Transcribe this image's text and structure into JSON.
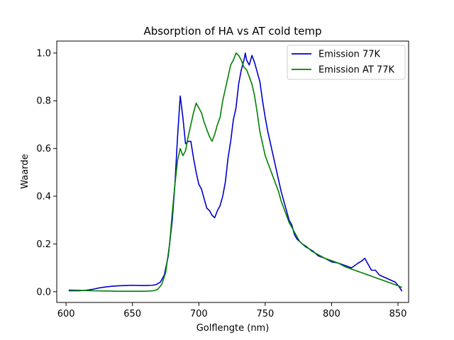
{
  "chart_data": {
    "type": "line",
    "title": "Absorption of HA vs AT cold temp",
    "xlabel": "Golflengte (nm)",
    "ylabel": "Waarde",
    "xlim": [
      593,
      858
    ],
    "ylim": [
      -0.045,
      1.05
    ],
    "xticks": [
      600,
      650,
      700,
      750,
      800,
      850
    ],
    "yticks": [
      0.0,
      0.2,
      0.4,
      0.6,
      0.8,
      1.0
    ],
    "xtick_labels": [
      "600",
      "650",
      "700",
      "750",
      "800",
      "850"
    ],
    "ytick_labels": [
      "0.0",
      "0.2",
      "0.4",
      "0.6",
      "0.8",
      "1.0"
    ],
    "grid": false,
    "legend_position": "top-right",
    "series": [
      {
        "name": "Emission 77K",
        "color": "#0000cc",
        "points": [
          [
            602,
            0.004
          ],
          [
            610,
            0.004
          ],
          [
            615,
            0.006
          ],
          [
            620,
            0.01
          ],
          [
            625,
            0.016
          ],
          [
            630,
            0.02
          ],
          [
            635,
            0.023
          ],
          [
            640,
            0.025
          ],
          [
            645,
            0.026
          ],
          [
            650,
            0.027
          ],
          [
            655,
            0.026
          ],
          [
            660,
            0.026
          ],
          [
            665,
            0.027
          ],
          [
            668,
            0.03
          ],
          [
            671,
            0.04
          ],
          [
            674,
            0.07
          ],
          [
            677,
            0.15
          ],
          [
            680,
            0.3
          ],
          [
            682,
            0.45
          ],
          [
            684,
            0.65
          ],
          [
            686,
            0.82
          ],
          [
            688,
            0.73
          ],
          [
            690,
            0.62
          ],
          [
            692,
            0.63
          ],
          [
            694,
            0.63
          ],
          [
            696,
            0.56
          ],
          [
            698,
            0.5
          ],
          [
            700,
            0.45
          ],
          [
            702,
            0.43
          ],
          [
            704,
            0.39
          ],
          [
            706,
            0.35
          ],
          [
            708,
            0.34
          ],
          [
            710,
            0.32
          ],
          [
            712,
            0.31
          ],
          [
            714,
            0.34
          ],
          [
            716,
            0.36
          ],
          [
            718,
            0.4
          ],
          [
            720,
            0.46
          ],
          [
            722,
            0.56
          ],
          [
            724,
            0.63
          ],
          [
            726,
            0.72
          ],
          [
            728,
            0.77
          ],
          [
            730,
            0.87
          ],
          [
            732,
            0.93
          ],
          [
            734,
            0.97
          ],
          [
            735,
            1.0
          ],
          [
            736,
            0.97
          ],
          [
            738,
            0.95
          ],
          [
            740,
            0.99
          ],
          [
            742,
            0.96
          ],
          [
            744,
            0.92
          ],
          [
            746,
            0.88
          ],
          [
            748,
            0.8
          ],
          [
            750,
            0.73
          ],
          [
            752,
            0.67
          ],
          [
            754,
            0.62
          ],
          [
            756,
            0.57
          ],
          [
            758,
            0.52
          ],
          [
            760,
            0.47
          ],
          [
            762,
            0.42
          ],
          [
            764,
            0.38
          ],
          [
            766,
            0.34
          ],
          [
            768,
            0.3
          ],
          [
            770,
            0.28
          ],
          [
            772,
            0.24
          ],
          [
            774,
            0.22
          ],
          [
            776,
            0.21
          ],
          [
            778,
            0.2
          ],
          [
            780,
            0.19
          ],
          [
            783,
            0.18
          ],
          [
            786,
            0.17
          ],
          [
            790,
            0.15
          ],
          [
            795,
            0.14
          ],
          [
            800,
            0.125
          ],
          [
            805,
            0.12
          ],
          [
            810,
            0.11
          ],
          [
            815,
            0.1
          ],
          [
            820,
            0.12
          ],
          [
            823,
            0.13
          ],
          [
            825,
            0.14
          ],
          [
            827,
            0.12
          ],
          [
            830,
            0.09
          ],
          [
            833,
            0.09
          ],
          [
            836,
            0.07
          ],
          [
            840,
            0.06
          ],
          [
            844,
            0.05
          ],
          [
            848,
            0.04
          ],
          [
            851,
            0.02
          ],
          [
            853,
            0.002
          ]
        ]
      },
      {
        "name": "Emission AT 77K",
        "color": "#008000",
        "points": [
          [
            602,
            0.007
          ],
          [
            610,
            0.006
          ],
          [
            615,
            0.005
          ],
          [
            620,
            0.004
          ],
          [
            630,
            0.003
          ],
          [
            640,
            0.002
          ],
          [
            650,
            0.002
          ],
          [
            660,
            0.002
          ],
          [
            666,
            0.004
          ],
          [
            669,
            0.01
          ],
          [
            672,
            0.03
          ],
          [
            675,
            0.08
          ],
          [
            678,
            0.2
          ],
          [
            680,
            0.33
          ],
          [
            682,
            0.45
          ],
          [
            684,
            0.55
          ],
          [
            686,
            0.6
          ],
          [
            688,
            0.57
          ],
          [
            690,
            0.59
          ],
          [
            692,
            0.65
          ],
          [
            694,
            0.7
          ],
          [
            696,
            0.75
          ],
          [
            698,
            0.79
          ],
          [
            700,
            0.77
          ],
          [
            702,
            0.75
          ],
          [
            704,
            0.71
          ],
          [
            706,
            0.68
          ],
          [
            708,
            0.65
          ],
          [
            710,
            0.63
          ],
          [
            712,
            0.66
          ],
          [
            714,
            0.7
          ],
          [
            716,
            0.73
          ],
          [
            718,
            0.8
          ],
          [
            720,
            0.85
          ],
          [
            722,
            0.9
          ],
          [
            724,
            0.95
          ],
          [
            726,
            0.97
          ],
          [
            728,
            1.0
          ],
          [
            730,
            0.99
          ],
          [
            732,
            0.97
          ],
          [
            734,
            0.94
          ],
          [
            736,
            0.93
          ],
          [
            738,
            0.9
          ],
          [
            740,
            0.87
          ],
          [
            742,
            0.82
          ],
          [
            744,
            0.75
          ],
          [
            746,
            0.67
          ],
          [
            748,
            0.62
          ],
          [
            750,
            0.57
          ],
          [
            752,
            0.54
          ],
          [
            754,
            0.51
          ],
          [
            756,
            0.48
          ],
          [
            758,
            0.45
          ],
          [
            760,
            0.42
          ],
          [
            762,
            0.38
          ],
          [
            764,
            0.35
          ],
          [
            766,
            0.32
          ],
          [
            768,
            0.29
          ],
          [
            770,
            0.27
          ],
          [
            772,
            0.25
          ],
          [
            774,
            0.23
          ],
          [
            776,
            0.21
          ],
          [
            778,
            0.2
          ],
          [
            781,
            0.19
          ],
          [
            785,
            0.17
          ],
          [
            790,
            0.155
          ],
          [
            795,
            0.14
          ],
          [
            800,
            0.13
          ],
          [
            805,
            0.12
          ],
          [
            810,
            0.105
          ],
          [
            815,
            0.095
          ],
          [
            820,
            0.085
          ],
          [
            825,
            0.075
          ],
          [
            830,
            0.065
          ],
          [
            835,
            0.055
          ],
          [
            840,
            0.045
          ],
          [
            845,
            0.035
          ],
          [
            850,
            0.025
          ],
          [
            853,
            0.018
          ]
        ]
      }
    ]
  }
}
